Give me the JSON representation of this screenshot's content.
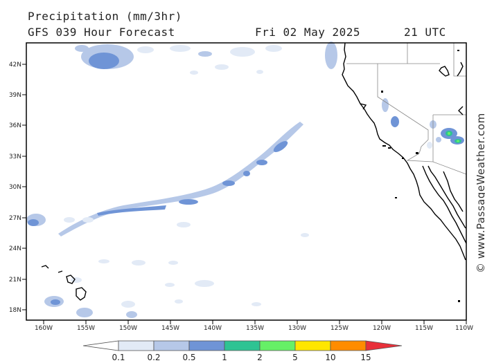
{
  "header": {
    "title": "Precipitation (mm/3hr)",
    "subtitle": "GFS 039 Hour Forecast",
    "valid_date": "Fri 02 May 2025",
    "valid_time": "21 UTC"
  },
  "map": {
    "lat_labels": [
      "42N",
      "39N",
      "36N",
      "33N",
      "30N",
      "27N",
      "24N",
      "21N",
      "18N"
    ],
    "lon_labels": [
      "160W",
      "155W",
      "150W",
      "145W",
      "140W",
      "135W",
      "130W",
      "125W",
      "120W",
      "115W",
      "110W"
    ],
    "lat_range": [
      17,
      43.5
    ],
    "lon_range": [
      -162,
      -110
    ]
  },
  "colorbar": {
    "levels": [
      "0.1",
      "0.2",
      "0.5",
      "1",
      "2",
      "5",
      "10",
      "15"
    ],
    "colors": [
      "#ffffff",
      "#e2eaf6",
      "#b6c8e8",
      "#6f94d6",
      "#2ec393",
      "#66f066",
      "#ffe600",
      "#ff8c00",
      "#e8303a"
    ]
  },
  "credit": "© www.PassageWeather.com"
}
